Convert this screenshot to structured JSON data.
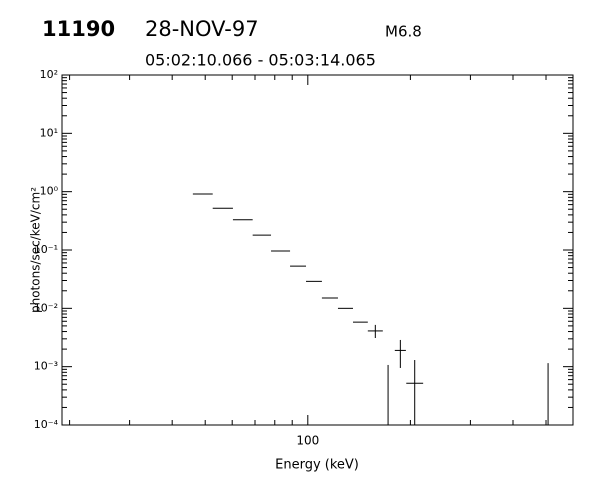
{
  "chart_data": {
    "type": "errorbar",
    "id": "11190",
    "date": "28-NOV-97",
    "class": "M6.8",
    "time_range": "05:02:10.066 - 05:03:14.065",
    "x_label": "Energy (keV)",
    "y_label": "photons/sec/keV/cm²",
    "log_x": true,
    "log_y": true,
    "color": "#000000",
    "xlim": [
      19,
      600
    ],
    "xticks": [
      100
    ],
    "ylim": [
      0.0001,
      100
    ],
    "yticks": [
      {
        "value": 0.0001,
        "label": "10⁻⁴"
      },
      {
        "value": 0.001,
        "label": "10⁻³"
      },
      {
        "value": 0.01,
        "label": "10⁻²"
      },
      {
        "value": 0.1,
        "label": "10⁻¹"
      },
      {
        "value": 1,
        "label": "10⁰"
      },
      {
        "value": 10,
        "label": "10¹"
      },
      {
        "value": 100,
        "label": "10²"
      }
    ],
    "x_lo": [
      46,
      52.6,
      60.3,
      68.9,
      78,
      88.7,
      98.8,
      110,
      122.6,
      135.7,
      150,
      180,
      194.5,
      172,
      507
    ],
    "x_hi": [
      52.6,
      60.3,
      68.9,
      78,
      88.7,
      98.8,
      110,
      122.6,
      135.7,
      150,
      166,
      194,
      218,
      172,
      507
    ],
    "values": [
      0.91,
      0.52,
      0.33,
      0.18,
      0.096,
      0.053,
      0.029,
      0.015,
      0.01,
      0.0058,
      0.0041,
      0.0019,
      0.00052,
      null,
      0.00033
    ],
    "y_lo": [
      null,
      null,
      null,
      null,
      null,
      null,
      null,
      null,
      null,
      null,
      0.0031,
      0.00095,
      0.0001,
      0.0001,
      0.0001
    ],
    "y_hi": [
      null,
      null,
      null,
      null,
      null,
      null,
      null,
      null,
      null,
      null,
      0.0052,
      0.00287,
      0.0013,
      0.00107,
      0.00115
    ]
  }
}
